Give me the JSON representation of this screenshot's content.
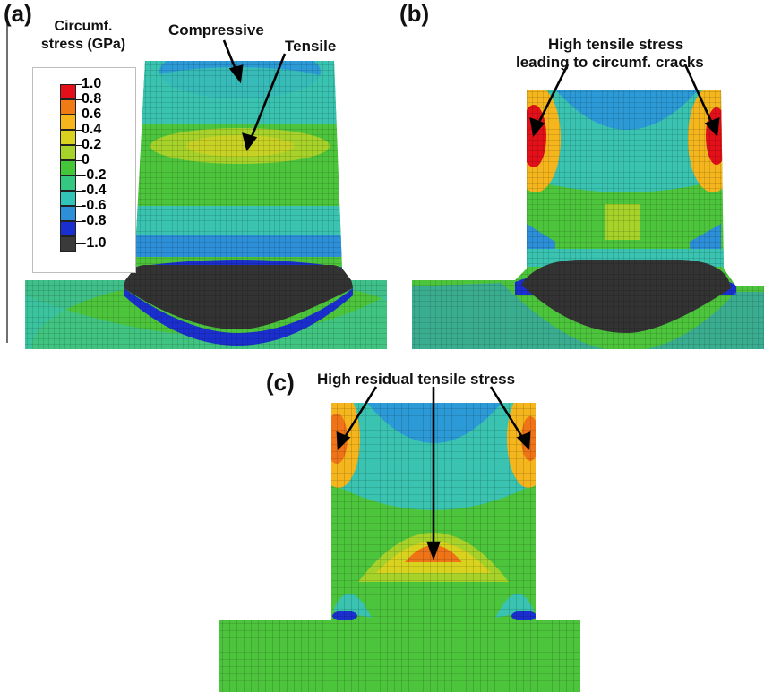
{
  "panels": {
    "a": {
      "letter": "(a)",
      "annotations": [
        "Compressive",
        "Tensile"
      ]
    },
    "b": {
      "letter": "(b)",
      "annotations": [
        "High tensile stress",
        "leading to circumf. cracks"
      ]
    },
    "c": {
      "letter": "(c)",
      "annotations": [
        "High residual tensile stress"
      ]
    }
  },
  "legend": {
    "title_line1": "Circumf.",
    "title_line2": "stress (GPa)",
    "ticks": [
      "1.0",
      "0.8",
      "0.6",
      "0.4",
      "0.2",
      "0",
      "-0.2",
      "-0.4",
      "-0.6",
      "-0.8",
      "-1.0"
    ],
    "colors": [
      "#e3101a",
      "#f07a14",
      "#f5b51c",
      "#d9d21e",
      "#a6d22a",
      "#43c63a",
      "#34c781",
      "#33c4b8",
      "#2d8fd8",
      "#1a2fd0",
      "#3a3a3a"
    ]
  },
  "colors": {
    "green": "#4cc43c",
    "cyan": "#39c3b0",
    "blue": "#2c7fd6",
    "darkblue": "#1b2fcf",
    "black": "#333333",
    "red": "#e11c16",
    "orange": "#ef7418",
    "yellow": "#d9cf20",
    "lime": "#9fd22c"
  }
}
